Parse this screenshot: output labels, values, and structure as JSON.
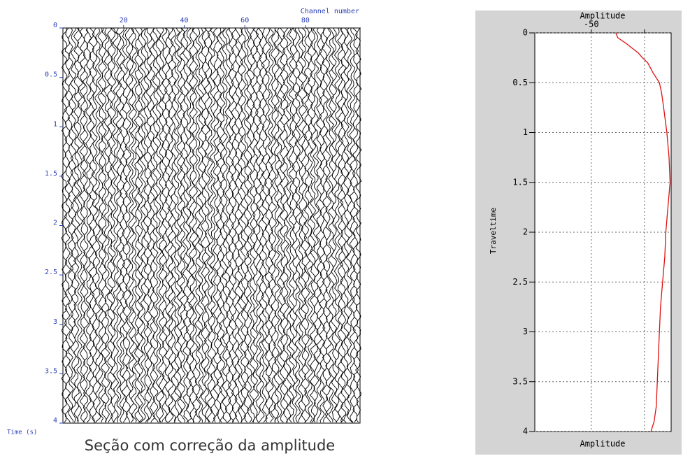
{
  "chart_data": [
    {
      "type": "seismic-section",
      "xlabel": "Channel number",
      "ylabel": "Time (s)",
      "caption": "Seção com correção da amplitude",
      "xlim": [
        0,
        98
      ],
      "xticks": [
        20,
        40,
        60,
        80
      ],
      "ylim": [
        0,
        4
      ],
      "yticks": [
        0,
        0.5,
        1,
        1.5,
        2,
        2.5,
        3,
        3.5,
        4
      ],
      "color": "#2b3fb5"
    },
    {
      "type": "line",
      "xlabel": "Amplitude",
      "ylabel": "Traveltime",
      "xlim": [
        -103,
        25
      ],
      "xticks": [
        -50,
        {
          "value": 0,
          "label": null
        }
      ],
      "ylim": [
        0,
        4
      ],
      "yticks": [
        0,
        0.5,
        1,
        1.5,
        2,
        2.5,
        3,
        3.5,
        4
      ],
      "grid": true,
      "y": [
        0,
        0.05,
        0.1,
        0.15,
        0.2,
        0.25,
        0.3,
        0.4,
        0.5,
        0.6,
        0.75,
        1,
        1.25,
        1.5,
        1.75,
        2,
        2.25,
        2.5,
        2.75,
        3,
        3.25,
        3.5,
        3.75,
        3.9,
        4
      ],
      "series": [
        {
          "color": "#e01010",
          "values": [
            -27,
            -25,
            -18,
            -12,
            -6,
            -2,
            3,
            8,
            14,
            16,
            18,
            21,
            23,
            24,
            22,
            20,
            19,
            17,
            15,
            14,
            13,
            12,
            11,
            9,
            6
          ]
        }
      ]
    }
  ]
}
